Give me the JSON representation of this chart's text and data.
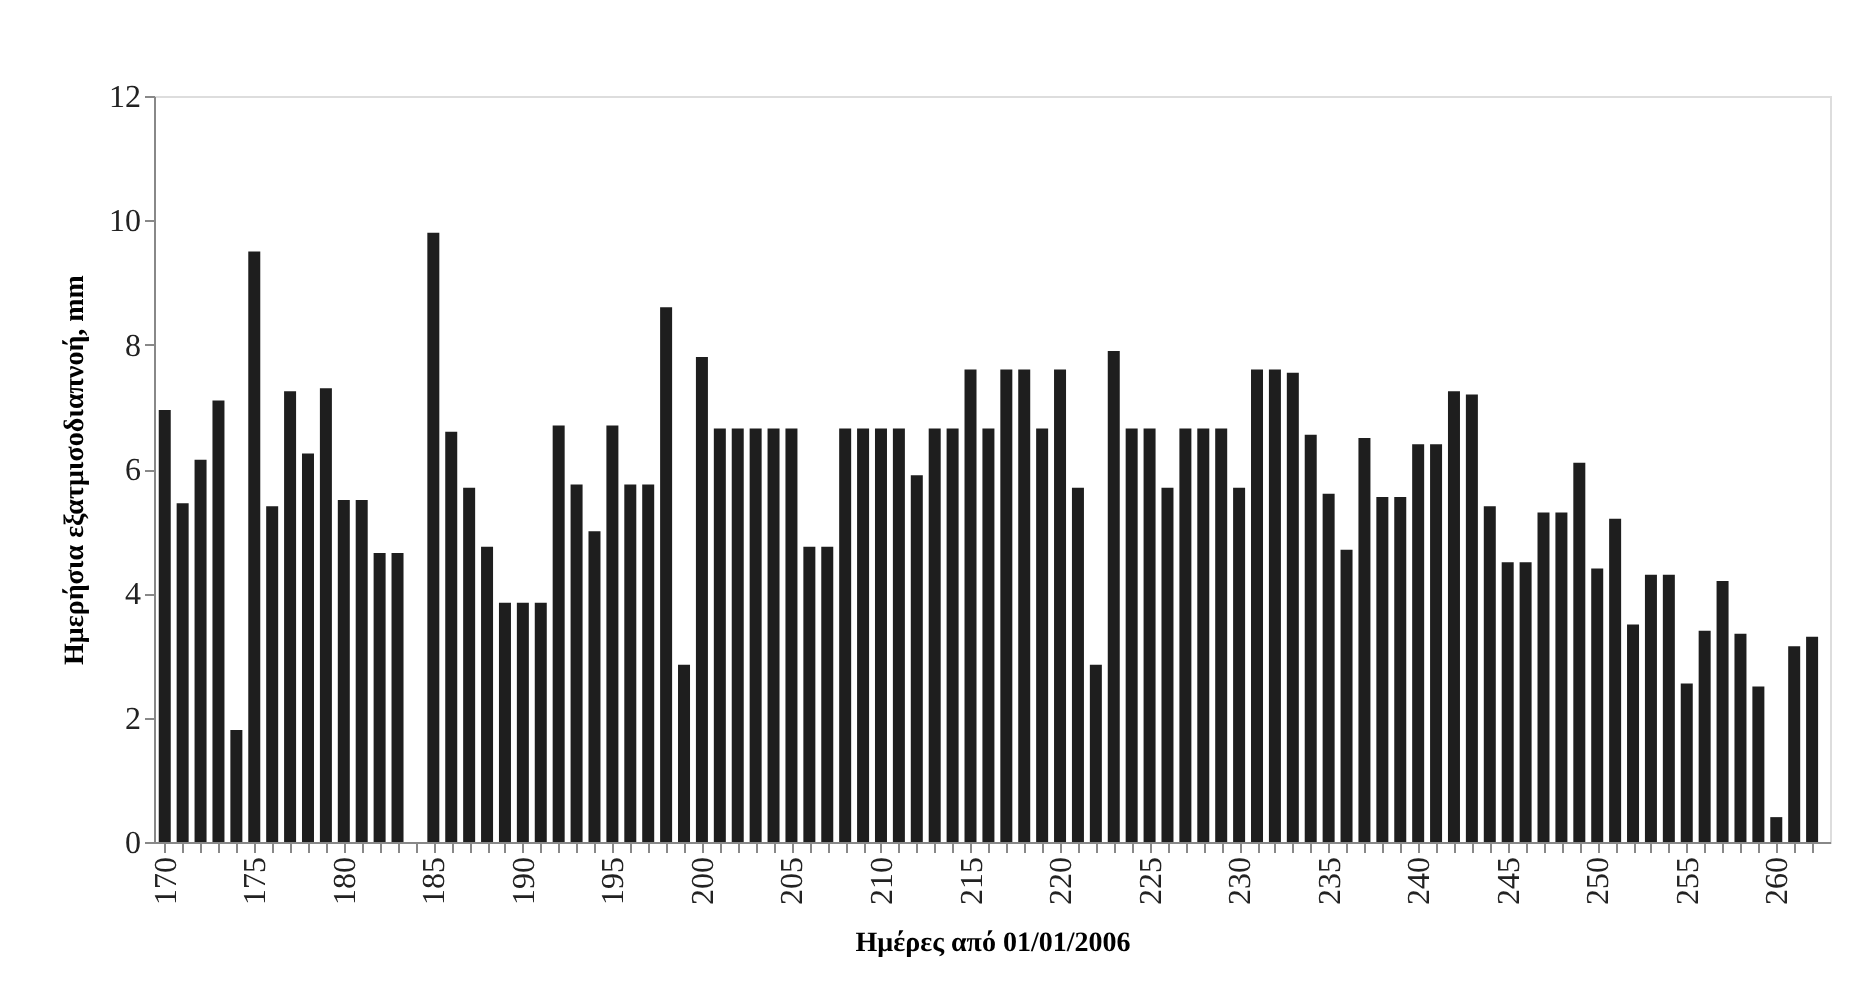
{
  "chart_data": {
    "type": "bar",
    "xlabel": "Ημέρες από 01/01/2006",
    "ylabel": "Ημερήσια εξατμισοδιαπνοή, mm",
    "x": [
      170,
      171,
      172,
      173,
      174,
      175,
      176,
      177,
      178,
      179,
      180,
      181,
      182,
      183,
      184,
      185,
      186,
      187,
      188,
      189,
      190,
      191,
      192,
      193,
      194,
      195,
      196,
      197,
      198,
      199,
      200,
      201,
      202,
      203,
      204,
      205,
      206,
      207,
      208,
      209,
      210,
      211,
      212,
      213,
      214,
      215,
      216,
      217,
      218,
      219,
      220,
      221,
      222,
      223,
      224,
      225,
      226,
      227,
      228,
      229,
      230,
      231,
      232,
      233,
      234,
      235,
      236,
      237,
      238,
      239,
      240,
      241,
      242,
      243,
      244,
      245,
      246,
      247,
      248,
      249,
      250,
      251,
      252,
      253,
      254,
      255,
      256,
      257,
      258,
      259,
      260,
      261,
      262
    ],
    "values": [
      6.95,
      5.45,
      6.15,
      7.1,
      1.8,
      9.5,
      5.4,
      7.25,
      6.25,
      7.3,
      5.5,
      5.5,
      4.65,
      4.65,
      null,
      9.8,
      6.6,
      5.7,
      4.75,
      3.85,
      3.85,
      3.85,
      6.7,
      5.75,
      5.0,
      6.7,
      5.75,
      5.75,
      8.6,
      2.85,
      7.8,
      6.65,
      6.65,
      6.65,
      6.65,
      6.65,
      4.75,
      4.75,
      6.65,
      6.65,
      6.65,
      6.65,
      5.9,
      6.65,
      6.65,
      7.6,
      6.65,
      7.6,
      7.6,
      6.65,
      7.6,
      5.7,
      2.85,
      7.9,
      6.65,
      6.65,
      5.7,
      6.65,
      6.65,
      6.65,
      5.7,
      7.6,
      7.6,
      7.55,
      6.55,
      5.6,
      4.7,
      6.5,
      5.55,
      5.55,
      6.4,
      6.4,
      7.25,
      7.2,
      5.4,
      4.5,
      4.5,
      5.3,
      5.3,
      6.1,
      4.4,
      5.2,
      3.5,
      4.3,
      4.3,
      2.55,
      3.4,
      4.2,
      3.35,
      2.5,
      0.4,
      3.15,
      3.3
    ],
    "color": "#1e1e1e",
    "xlim": [
      169.4,
      263
    ],
    "xticks": [
      170,
      {
        "value": 171,
        "label": null
      },
      {
        "value": 172,
        "label": null
      },
      {
        "value": 173,
        "label": null
      },
      {
        "value": 174,
        "label": null
      },
      175,
      {
        "value": 176,
        "label": null
      },
      {
        "value": 177,
        "label": null
      },
      {
        "value": 178,
        "label": null
      },
      {
        "value": 179,
        "label": null
      },
      180,
      {
        "value": 181,
        "label": null
      },
      {
        "value": 182,
        "label": null
      },
      {
        "value": 183,
        "label": null
      },
      {
        "value": 184,
        "label": null
      },
      185,
      {
        "value": 186,
        "label": null
      },
      {
        "value": 187,
        "label": null
      },
      {
        "value": 188,
        "label": null
      },
      {
        "value": 189,
        "label": null
      },
      190,
      {
        "value": 191,
        "label": null
      },
      {
        "value": 192,
        "label": null
      },
      {
        "value": 193,
        "label": null
      },
      {
        "value": 194,
        "label": null
      },
      195,
      {
        "value": 196,
        "label": null
      },
      {
        "value": 197,
        "label": null
      },
      {
        "value": 198,
        "label": null
      },
      {
        "value": 199,
        "label": null
      },
      200,
      {
        "value": 201,
        "label": null
      },
      {
        "value": 202,
        "label": null
      },
      {
        "value": 203,
        "label": null
      },
      {
        "value": 204,
        "label": null
      },
      205,
      {
        "value": 206,
        "label": null
      },
      {
        "value": 207,
        "label": null
      },
      {
        "value": 208,
        "label": null
      },
      {
        "value": 209,
        "label": null
      },
      210,
      {
        "value": 211,
        "label": null
      },
      {
        "value": 212,
        "label": null
      },
      {
        "value": 213,
        "label": null
      },
      {
        "value": 214,
        "label": null
      },
      215,
      {
        "value": 216,
        "label": null
      },
      {
        "value": 217,
        "label": null
      },
      {
        "value": 218,
        "label": null
      },
      {
        "value": 219,
        "label": null
      },
      220,
      {
        "value": 221,
        "label": null
      },
      {
        "value": 222,
        "label": null
      },
      {
        "value": 223,
        "label": null
      },
      {
        "value": 224,
        "label": null
      },
      225,
      {
        "value": 226,
        "label": null
      },
      {
        "value": 227,
        "label": null
      },
      {
        "value": 228,
        "label": null
      },
      {
        "value": 229,
        "label": null
      },
      230,
      {
        "value": 231,
        "label": null
      },
      {
        "value": 232,
        "label": null
      },
      {
        "value": 233,
        "label": null
      },
      {
        "value": 234,
        "label": null
      },
      235,
      {
        "value": 236,
        "label": null
      },
      {
        "value": 237,
        "label": null
      },
      {
        "value": 238,
        "label": null
      },
      {
        "value": 239,
        "label": null
      },
      240,
      {
        "value": 241,
        "label": null
      },
      {
        "value": 242,
        "label": null
      },
      {
        "value": 243,
        "label": null
      },
      {
        "value": 244,
        "label": null
      },
      245,
      {
        "value": 246,
        "label": null
      },
      {
        "value": 247,
        "label": null
      },
      {
        "value": 248,
        "label": null
      },
      {
        "value": 249,
        "label": null
      },
      250,
      {
        "value": 251,
        "label": null
      },
      {
        "value": 252,
        "label": null
      },
      {
        "value": 253,
        "label": null
      },
      {
        "value": 254,
        "label": null
      },
      255,
      {
        "value": 256,
        "label": null
      },
      {
        "value": 257,
        "label": null
      },
      {
        "value": 258,
        "label": null
      },
      {
        "value": 259,
        "label": null
      },
      260,
      {
        "value": 261,
        "label": null
      },
      {
        "value": 262,
        "label": null
      }
    ],
    "ylim": [
      0,
      12
    ],
    "yticks": [
      0,
      2,
      4,
      6,
      8,
      10,
      12
    ],
    "grid": false
  }
}
